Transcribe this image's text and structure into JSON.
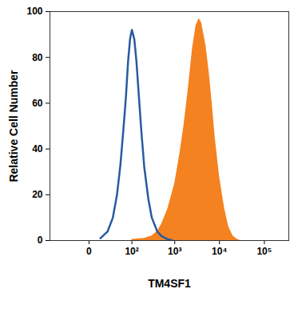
{
  "chart_data": {
    "type": "histogram",
    "x_label": "TM4SF1",
    "y_label": "Relative Cell Number",
    "log": "x",
    "xlim": [
      -80,
      350000
    ],
    "xticks": [
      0,
      {
        "value": 100,
        "label": "10²"
      },
      {
        "value": 1000,
        "label": "10³"
      },
      {
        "value": 10000,
        "label": "10⁴"
      },
      {
        "value": 100000,
        "label": "10⁵"
      }
    ],
    "ylim": [
      0,
      100
    ],
    "yticks": [
      0,
      20,
      40,
      60,
      80,
      100
    ],
    "series": [
      {
        "type": "line",
        "color": "#2a5aa0",
        "x": [
          10,
          20,
          30,
          40,
          50,
          60,
          70,
          80,
          90,
          100,
          115,
          130,
          150,
          170,
          200,
          250,
          300,
          400,
          500,
          700,
          900
        ],
        "values": [
          1,
          4,
          10,
          20,
          33,
          48,
          62,
          78,
          88,
          92,
          88,
          78,
          62,
          48,
          32,
          18,
          10,
          4,
          2,
          0.5,
          0
        ]
      },
      {
        "type": "area",
        "color": "#f58220",
        "x": [
          100,
          200,
          300,
          400,
          500,
          700,
          1000,
          1300,
          1600,
          2000,
          2500,
          3000,
          3500,
          4000,
          5000,
          6000,
          7000,
          8000,
          10000,
          13000,
          16000,
          20000,
          25000,
          30000
        ],
        "values": [
          0.5,
          1,
          2,
          4,
          7,
          14,
          25,
          38,
          50,
          66,
          84,
          94,
          97,
          95,
          85,
          72,
          58,
          45,
          28,
          14,
          6,
          2,
          0.5,
          0
        ]
      }
    ]
  }
}
